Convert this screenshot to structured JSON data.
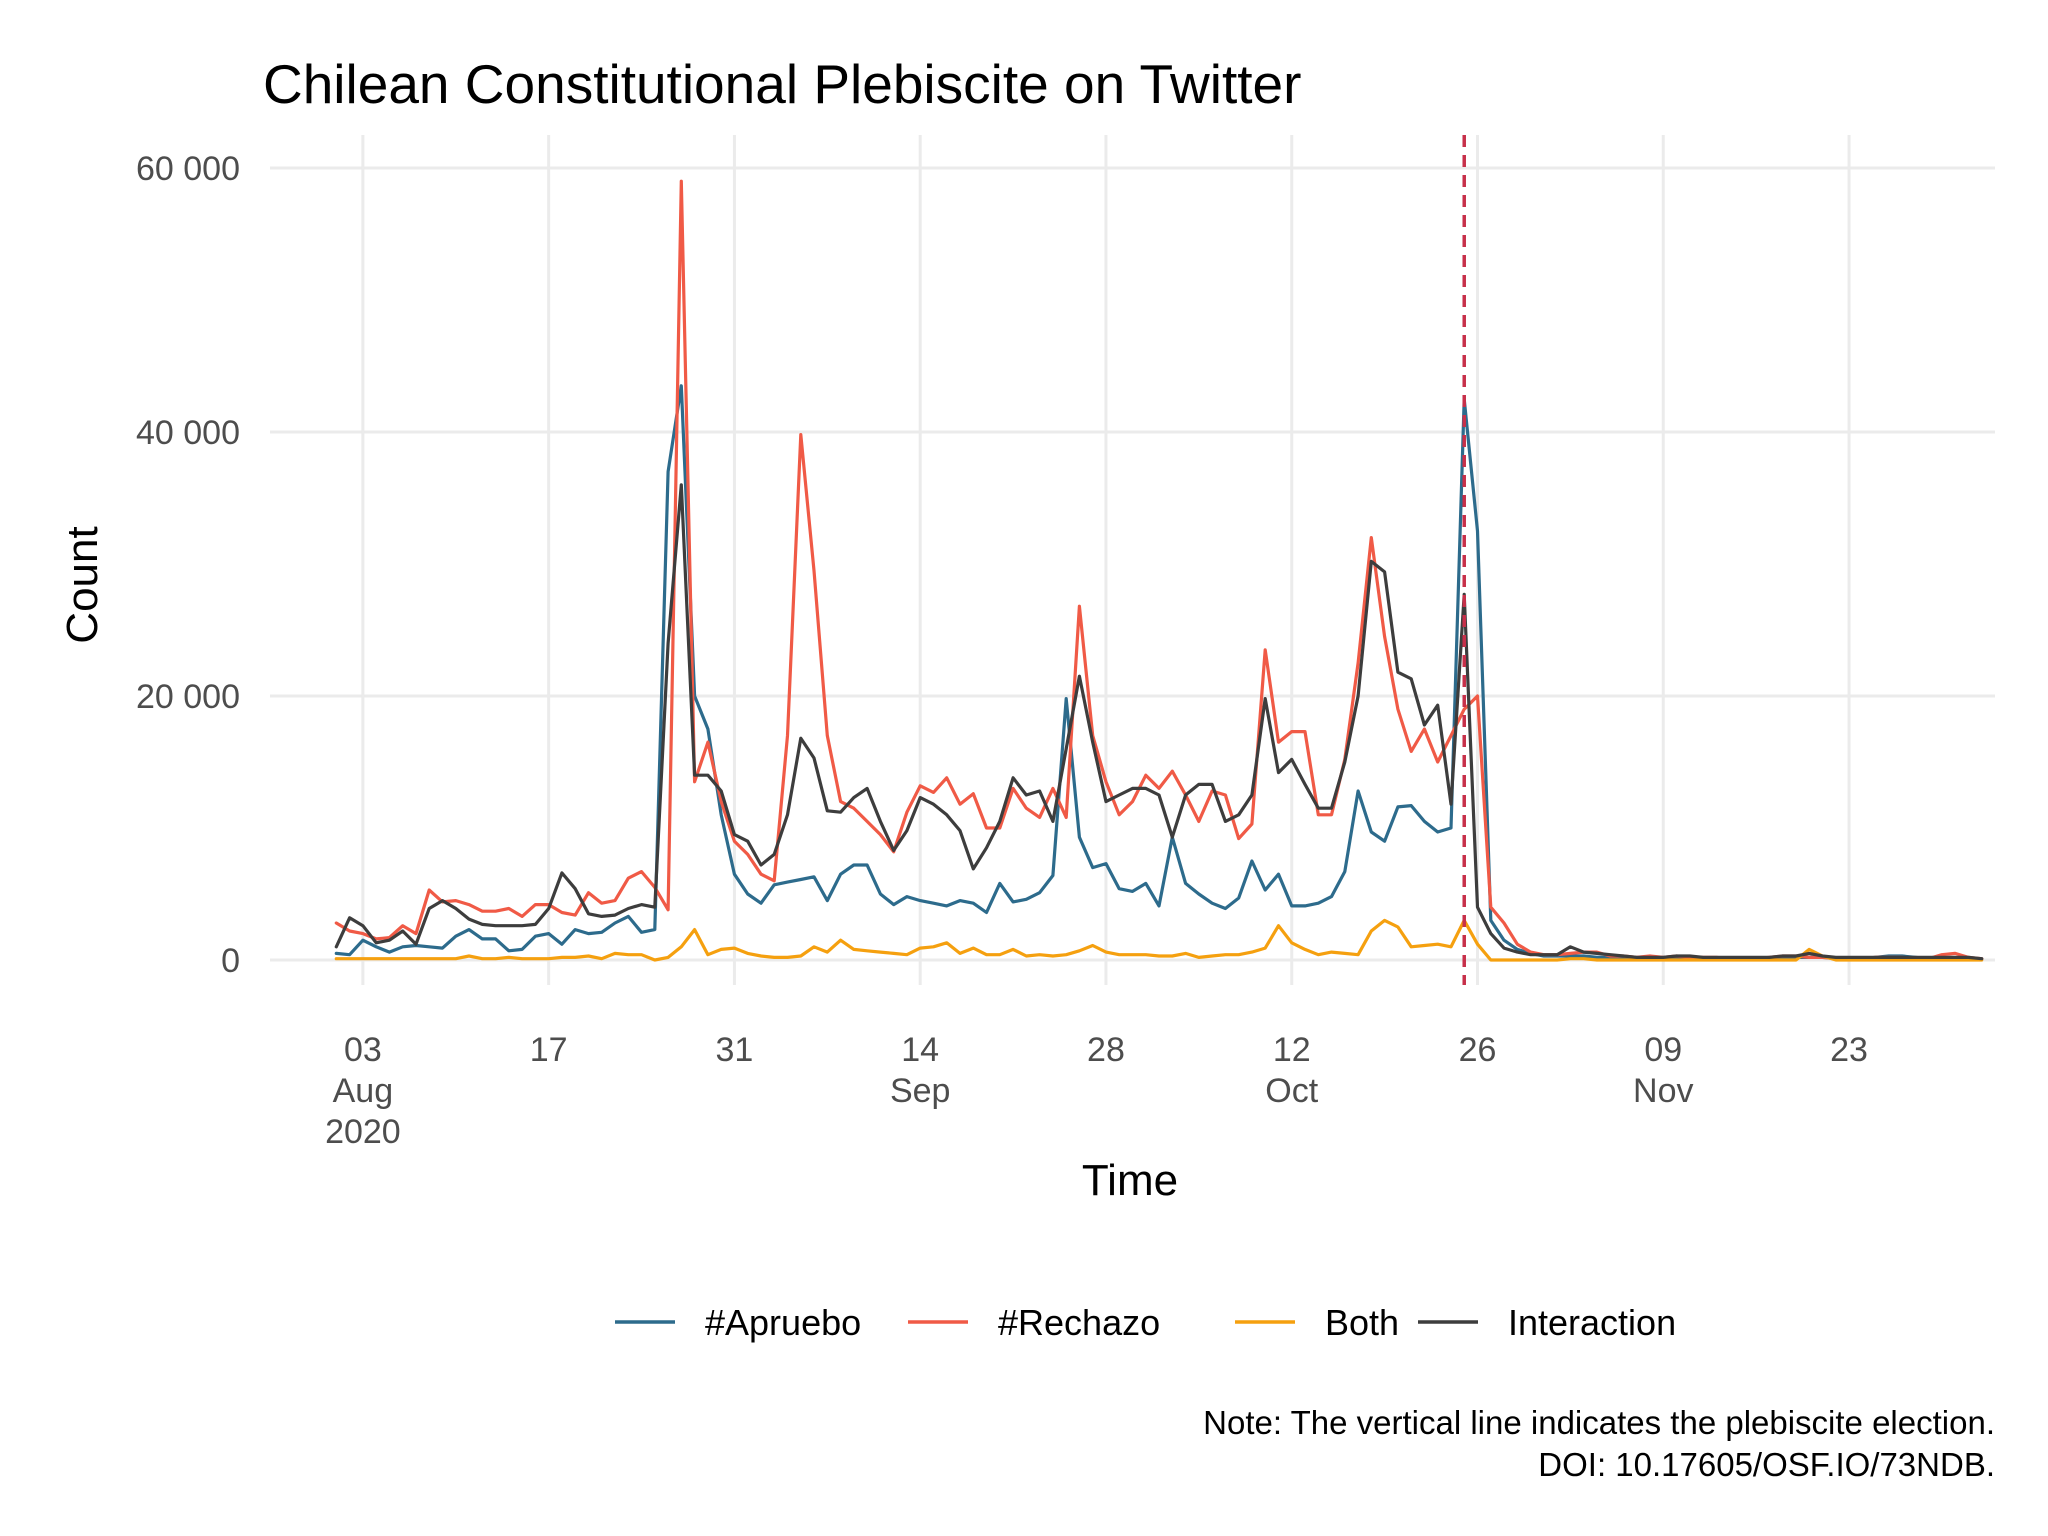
{
  "chart_data": {
    "type": "line",
    "title": "Chilean Constitutional Plebiscite on Twitter",
    "xlabel": "Time",
    "ylabel": "Count",
    "ylim": [
      0,
      60000
    ],
    "yticks": [
      {
        "value": 0,
        "label": "0"
      },
      {
        "value": 20000,
        "label": "20 000"
      },
      {
        "value": 40000,
        "label": "40 000"
      },
      {
        "value": 60000,
        "label": "60 000"
      }
    ],
    "x_start": "2020-08-01",
    "x_unit": "days since 2020-08-01",
    "xlim": [
      -5,
      125
    ],
    "xticks": [
      {
        "day": 2,
        "lines": [
          "03",
          "Aug",
          "2020"
        ]
      },
      {
        "day": 16,
        "lines": [
          "17"
        ]
      },
      {
        "day": 30,
        "lines": [
          "31"
        ]
      },
      {
        "day": 44,
        "lines": [
          "14",
          "Sep"
        ]
      },
      {
        "day": 58,
        "lines": [
          "28"
        ]
      },
      {
        "day": 72,
        "lines": [
          "12",
          "Oct"
        ]
      },
      {
        "day": 86,
        "lines": [
          "26"
        ]
      },
      {
        "day": 100,
        "lines": [
          "09",
          "Nov"
        ]
      },
      {
        "day": 114,
        "lines": [
          "23"
        ]
      }
    ],
    "vline": {
      "day": 85,
      "color": "#C7304A",
      "meaning": "plebiscite election"
    },
    "series": [
      {
        "name": "#Apruebo",
        "color": "#2D6B8C",
        "values": [
          500,
          400,
          1500,
          1000,
          600,
          1000,
          1100,
          1000,
          900,
          1800,
          2300,
          1600,
          1600,
          700,
          800,
          1800,
          2000,
          1200,
          2300,
          2000,
          2100,
          2800,
          3300,
          2100,
          2300,
          37000,
          43500,
          20000,
          17500,
          11000,
          6500,
          5000,
          4300,
          5700,
          5900,
          6100,
          6300,
          4500,
          6500,
          7200,
          7200,
          5000,
          4200,
          4800,
          4500,
          4300,
          4100,
          4500,
          4300,
          3600,
          5800,
          4400,
          4600,
          5100,
          6400,
          19800,
          9300,
          7000,
          7300,
          5400,
          5200,
          5800,
          4100,
          9300,
          5800,
          5000,
          4300,
          3900,
          4700,
          7500,
          5300,
          6500,
          4100,
          4100,
          4300,
          4800,
          6700,
          12800,
          9700,
          9000,
          11600,
          11700,
          10500,
          9700,
          10000,
          42500,
          32500,
          3000,
          1500,
          800,
          500,
          300,
          300,
          300,
          300,
          200,
          200,
          200,
          100,
          200,
          100,
          100,
          100,
          100,
          100,
          100,
          100,
          100,
          100,
          100,
          200,
          200,
          200,
          150,
          100,
          100,
          200,
          300,
          300,
          200,
          100,
          200,
          100,
          100,
          100
        ]
      },
      {
        "name": "#Rechazo",
        "color": "#F05A46",
        "values": [
          2800,
          2200,
          2000,
          1600,
          1700,
          2600,
          2000,
          5300,
          4400,
          4500,
          4200,
          3700,
          3700,
          3900,
          3300,
          4200,
          4200,
          3600,
          3400,
          5100,
          4300,
          4500,
          6200,
          6700,
          5500,
          3800,
          59000,
          13500,
          16500,
          12000,
          9000,
          8000,
          6500,
          6000,
          17000,
          39800,
          29500,
          17000,
          12000,
          11500,
          10500,
          9500,
          8200,
          11200,
          13200,
          12700,
          13800,
          11800,
          12600,
          10000,
          10000,
          13000,
          11500,
          10800,
          13000,
          10800,
          26800,
          17000,
          13500,
          11000,
          12000,
          14000,
          13000,
          14300,
          12500,
          10500,
          12800,
          12500,
          9200,
          10300,
          23500,
          16500,
          17300,
          17300,
          11000,
          11000,
          15200,
          22500,
          32000,
          24500,
          19000,
          15800,
          17500,
          15000,
          17000,
          19000,
          20000,
          4000,
          2800,
          1200,
          600,
          400,
          400,
          500,
          600,
          600,
          300,
          300,
          200,
          300,
          200,
          300,
          200,
          200,
          200,
          100,
          100,
          100,
          200,
          300,
          300,
          200,
          200,
          100,
          100,
          100,
          200,
          200,
          200,
          100,
          100,
          400,
          500,
          200,
          100
        ]
      },
      {
        "name": "Both",
        "color": "#F5A00F",
        "values": [
          100,
          100,
          100,
          100,
          100,
          100,
          100,
          100,
          100,
          100,
          300,
          100,
          100,
          200,
          100,
          100,
          100,
          200,
          200,
          300,
          100,
          500,
          400,
          400,
          0,
          200,
          1000,
          2300,
          400,
          800,
          900,
          500,
          300,
          200,
          200,
          300,
          1000,
          600,
          1500,
          800,
          700,
          600,
          500,
          400,
          900,
          1000,
          1300,
          500,
          900,
          400,
          400,
          800,
          300,
          400,
          300,
          400,
          700,
          1100,
          600,
          400,
          400,
          400,
          300,
          300,
          500,
          200,
          300,
          400,
          400,
          600,
          900,
          2600,
          1300,
          800,
          400,
          600,
          500,
          400,
          2200,
          3000,
          2500,
          1000,
          1100,
          1200,
          1000,
          3000,
          1200,
          0,
          0,
          0,
          0,
          0,
          0,
          100,
          100,
          0,
          0,
          0,
          0,
          0,
          0,
          0,
          0,
          0,
          0,
          0,
          0,
          0,
          0,
          0,
          0,
          800,
          300,
          0,
          0,
          0,
          0,
          0,
          0,
          0,
          0,
          0,
          0,
          0,
          0
        ]
      },
      {
        "name": "Interaction",
        "color": "#3D3D3D",
        "values": [
          1000,
          3200,
          2600,
          1300,
          1500,
          2200,
          1200,
          3900,
          4500,
          3900,
          3100,
          2700,
          2600,
          2600,
          2600,
          2700,
          3900,
          6600,
          5400,
          3500,
          3300,
          3400,
          3900,
          4200,
          4000,
          24000,
          36000,
          14000,
          14000,
          12800,
          9500,
          9000,
          7200,
          8000,
          11000,
          16800,
          15300,
          11300,
          11200,
          12300,
          13000,
          10500,
          8300,
          9800,
          12300,
          11800,
          11000,
          9800,
          6900,
          8500,
          10500,
          13800,
          12500,
          12800,
          10500,
          16000,
          21500,
          16500,
          12000,
          12500,
          13000,
          13000,
          12500,
          9300,
          12500,
          13300,
          13300,
          10500,
          11000,
          12500,
          19800,
          14200,
          15200,
          13300,
          11500,
          11500,
          15000,
          20000,
          30200,
          29400,
          21800,
          21300,
          17800,
          19300,
          11800,
          27700,
          4000,
          2000,
          900,
          600,
          400,
          400,
          400,
          1000,
          600,
          500,
          400,
          300,
          200,
          200,
          200,
          300,
          300,
          200,
          200,
          200,
          200,
          200,
          200,
          300,
          300,
          500,
          300,
          200,
          200,
          200,
          200,
          200,
          200,
          200,
          200,
          200,
          200,
          200,
          100
        ]
      }
    ],
    "legend": {
      "position": "bottom",
      "items": [
        "#Apruebo",
        "#Rechazo",
        "Both",
        "Interaction"
      ]
    }
  },
  "note": {
    "line1": "Note: The vertical line indicates the plebiscite election.",
    "line2": "DOI: 10.17605/OSF.IO/73NDB."
  }
}
